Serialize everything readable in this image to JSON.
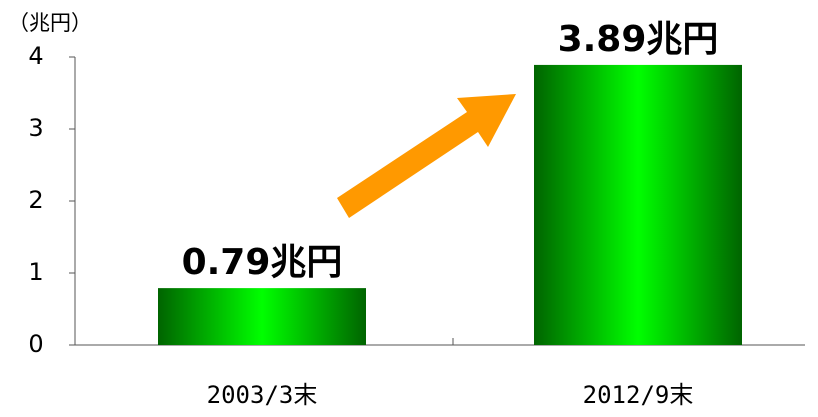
{
  "chart_data": {
    "type": "bar",
    "y_label": "（兆円）",
    "categories": [
      "2003/3末",
      "2012/9末"
    ],
    "values": [
      0.79,
      3.89
    ],
    "value_labels": [
      "0.79兆円",
      "3.89兆円"
    ],
    "color": "#00ff00",
    "ylim": [
      0,
      4
    ],
    "yticks": [
      0,
      1,
      2,
      3,
      4
    ]
  }
}
